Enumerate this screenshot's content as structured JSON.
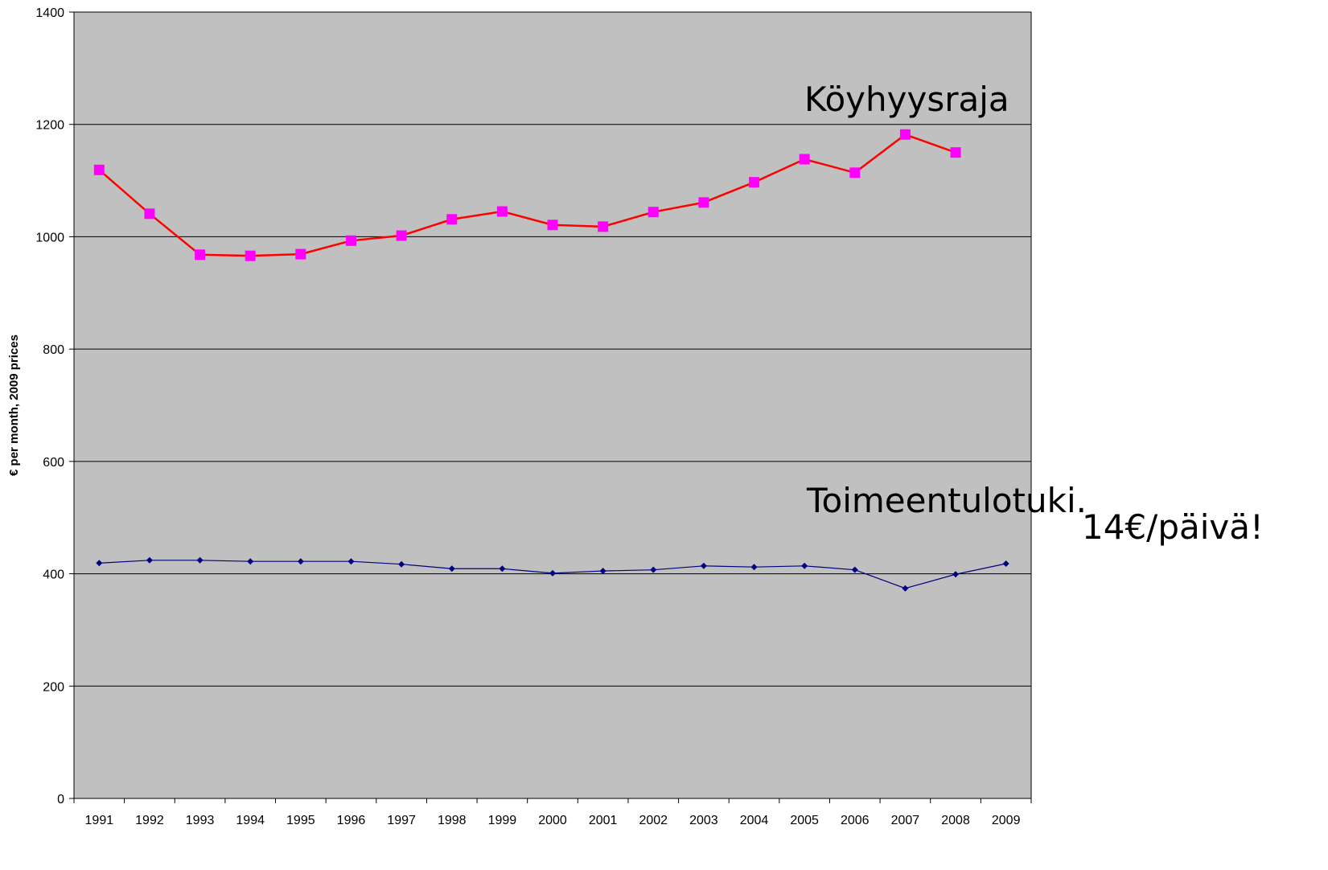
{
  "chart_data": {
    "type": "line",
    "y_label": "€ per month, 2009 prices",
    "categories": [
      "1991",
      "1992",
      "1993",
      "1994",
      "1995",
      "1996",
      "1997",
      "1998",
      "1999",
      "2000",
      "2001",
      "2002",
      "2003",
      "2004",
      "2005",
      "2006",
      "2007",
      "2008",
      "2009"
    ],
    "series": [
      {
        "name": "Köyhyysraja",
        "color": "#ff0000",
        "marker_color": "#ff00ff",
        "marker": "square",
        "values": [
          1119,
          1041,
          968,
          966,
          969,
          993,
          1002,
          1031,
          1045,
          1021,
          1018,
          1044,
          1061,
          1097,
          1138,
          1114,
          1182,
          1150,
          null
        ]
      },
      {
        "name": "Toimeentulotuki.",
        "color": "#000080",
        "marker_color": "#000080",
        "marker": "diamond",
        "values": [
          419,
          424,
          424,
          422,
          422,
          422,
          417,
          409,
          409,
          401,
          405,
          407,
          414,
          412,
          414,
          407,
          374,
          399,
          418
        ]
      }
    ],
    "annotations": [
      "14€/päivä!"
    ],
    "ylim": [
      0,
      1400
    ],
    "yticks": [
      0,
      200,
      400,
      600,
      800,
      1000,
      1200,
      1400
    ],
    "grid": true
  }
}
